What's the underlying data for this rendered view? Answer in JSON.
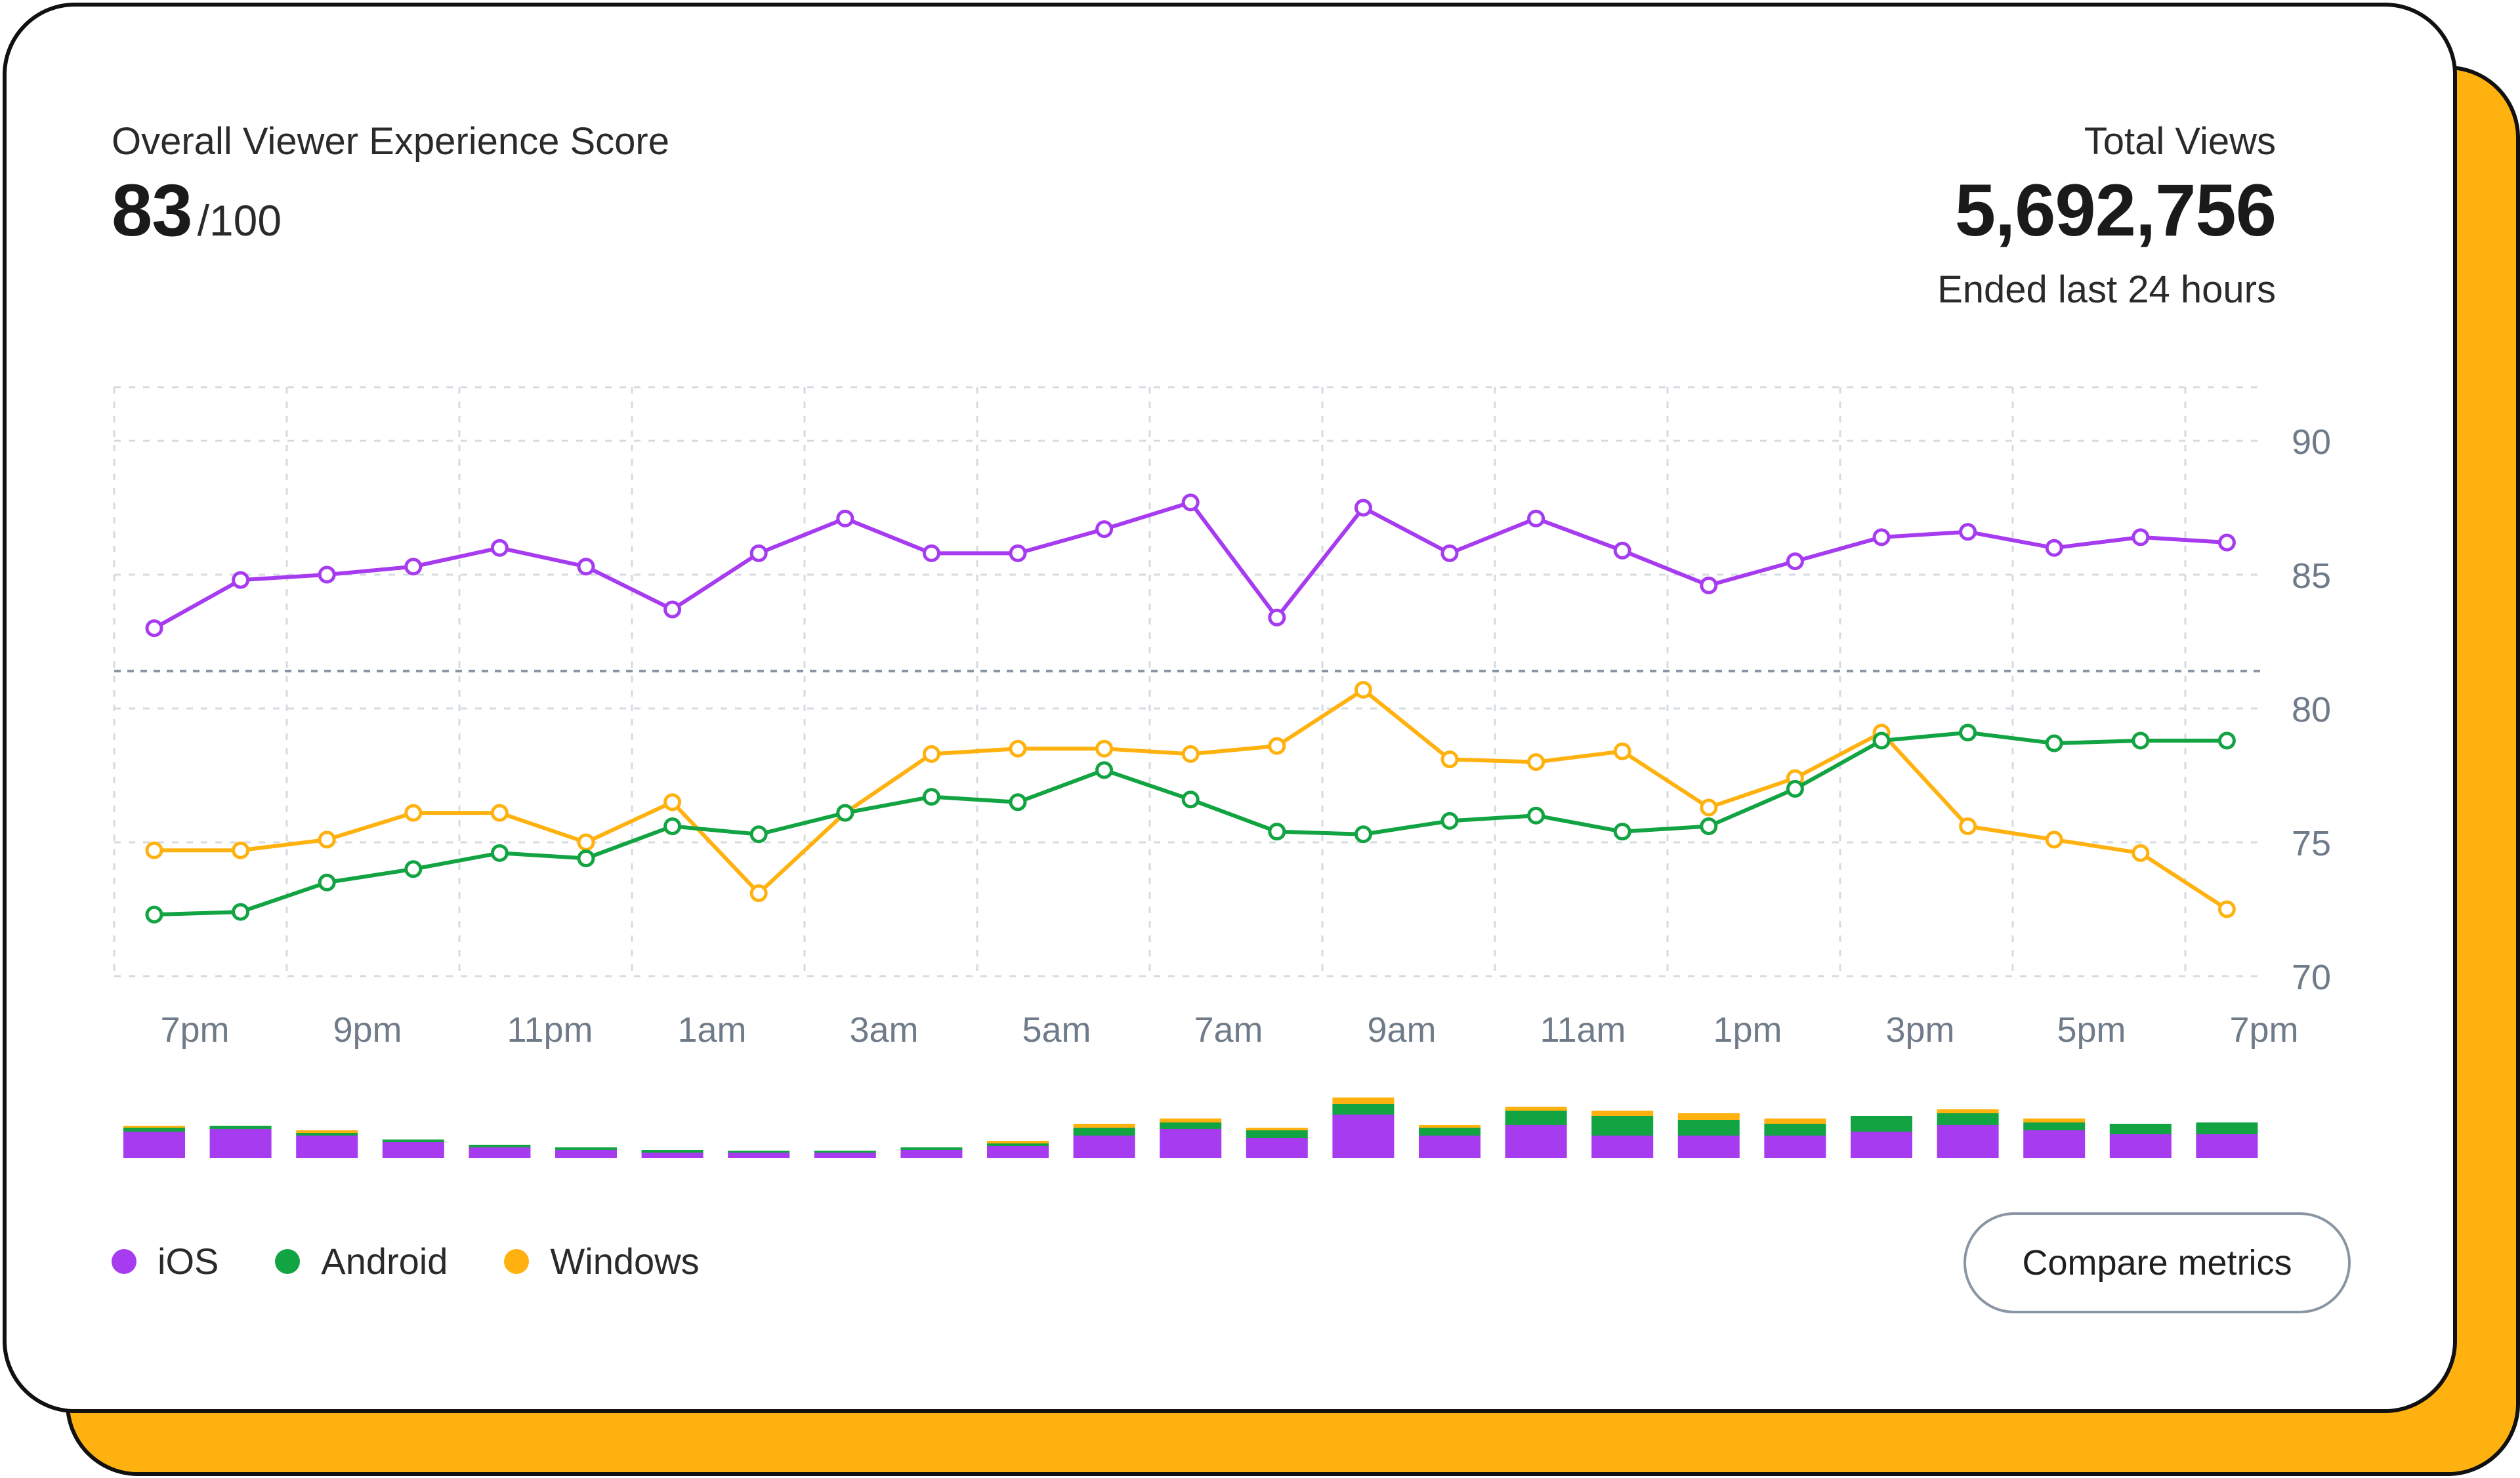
{
  "header": {
    "score_label": "Overall Viewer Experience Score",
    "score_value": "83",
    "score_suffix": "/100",
    "views_label": "Total Views",
    "views_value": "5,692,756",
    "views_range": "Ended last 24 hours"
  },
  "colors": {
    "ios": "#A63BEF",
    "android": "#12A342",
    "windows": "#FFB20F",
    "accent_frame": "#FFB20F",
    "grid": "#d6dbe1",
    "threshold": "#8a95a3",
    "axis_text": "#6f7b88"
  },
  "legend": [
    {
      "label": "iOS",
      "color": "#A63BEF"
    },
    {
      "label": "Android",
      "color": "#12A342"
    },
    {
      "label": "Windows",
      "color": "#FFB20F"
    }
  ],
  "compare_button": {
    "label": "Compare metrics"
  },
  "chart_data": {
    "type": "line",
    "title": "",
    "xlabel": "",
    "ylabel": "",
    "x_tick_labels": [
      "7pm",
      "9pm",
      "11pm",
      "1am",
      "3am",
      "5am",
      "7am",
      "9am",
      "11am",
      "1pm",
      "3pm",
      "5pm",
      "7pm"
    ],
    "y_ticks": [
      90,
      85,
      80,
      75,
      70
    ],
    "ylim": [
      70,
      92
    ],
    "grid": true,
    "reference_line": 81.4,
    "series": [
      {
        "name": "iOS",
        "color": "#A63BEF",
        "values": [
          83.0,
          84.8,
          85.0,
          85.3,
          86.0,
          85.3,
          83.7,
          85.8,
          87.1,
          85.8,
          85.8,
          86.7,
          87.7,
          83.4,
          87.5,
          85.8,
          87.1,
          85.9,
          84.6,
          85.5,
          86.4,
          86.6,
          86.0,
          86.4,
          86.2
        ]
      },
      {
        "name": "Android",
        "color": "#12A342",
        "values": [
          72.3,
          72.4,
          73.5,
          74.0,
          74.6,
          74.4,
          75.6,
          75.3,
          76.1,
          76.7,
          76.5,
          77.7,
          76.6,
          75.4,
          75.3,
          75.8,
          76.0,
          75.4,
          75.6,
          77.0,
          78.8,
          79.1,
          78.7,
          78.8,
          78.8
        ]
      },
      {
        "name": "Windows",
        "color": "#FFB20F",
        "values": [
          74.7,
          74.7,
          75.1,
          76.1,
          76.1,
          75.0,
          76.5,
          73.1,
          76.1,
          78.3,
          78.5,
          78.5,
          78.3,
          78.6,
          80.7,
          78.1,
          78.0,
          78.4,
          76.3,
          77.4,
          79.1,
          75.6,
          75.1,
          74.6,
          72.5
        ]
      }
    ],
    "volume_bars": {
      "type": "stacked-bar",
      "series_order": [
        "iOS",
        "Android",
        "Windows"
      ],
      "values": [
        [
          40,
          6,
          3
        ],
        [
          44,
          5,
          0
        ],
        [
          34,
          4,
          4
        ],
        [
          24,
          4,
          0
        ],
        [
          16,
          4,
          0
        ],
        [
          12,
          4,
          0
        ],
        [
          8,
          4,
          0
        ],
        [
          8,
          3,
          0
        ],
        [
          8,
          3,
          0
        ],
        [
          12,
          4,
          0
        ],
        [
          18,
          4,
          4
        ],
        [
          34,
          12,
          6
        ],
        [
          44,
          10,
          6
        ],
        [
          30,
          12,
          4
        ],
        [
          66,
          16,
          10
        ],
        [
          34,
          12,
          4
        ],
        [
          50,
          22,
          6
        ],
        [
          34,
          30,
          8
        ],
        [
          34,
          24,
          10
        ],
        [
          34,
          18,
          8
        ],
        [
          40,
          24,
          0
        ],
        [
          50,
          18,
          6
        ],
        [
          42,
          12,
          6
        ],
        [
          36,
          16,
          0
        ],
        [
          36,
          18,
          0
        ]
      ]
    }
  }
}
